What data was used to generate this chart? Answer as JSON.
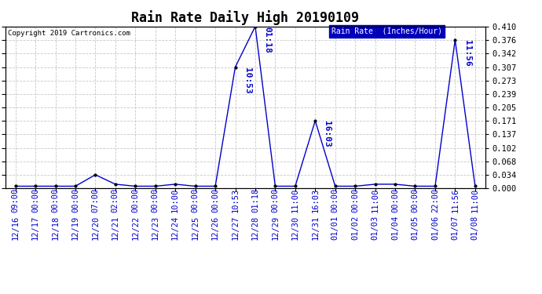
{
  "title": "Rain Rate Daily High 20190109",
  "copyright": "Copyright 2019 Cartronics.com",
  "legend_label": "Rain Rate  (Inches/Hour)",
  "line_color": "#0000cc",
  "background_color": "#ffffff",
  "grid_color": "#c8c8c8",
  "ylim": [
    0.0,
    0.41
  ],
  "ytick_values": [
    0.0,
    0.034,
    0.068,
    0.102,
    0.137,
    0.171,
    0.205,
    0.239,
    0.273,
    0.307,
    0.342,
    0.376,
    0.41
  ],
  "data_y": [
    0.005,
    0.005,
    0.005,
    0.005,
    0.034,
    0.01,
    0.005,
    0.005,
    0.01,
    0.005,
    0.005,
    0.307,
    0.41,
    0.005,
    0.005,
    0.171,
    0.005,
    0.005,
    0.01,
    0.01,
    0.005,
    0.005,
    0.376,
    0.005
  ],
  "x_date_labels": [
    "12/16",
    "12/17",
    "12/18",
    "12/19",
    "12/20",
    "12/21",
    "12/22",
    "12/23",
    "12/24",
    "12/25",
    "12/26",
    "12/27",
    "12/28",
    "12/29",
    "12/30",
    "12/31",
    "01/01",
    "01/02",
    "01/03",
    "01/04",
    "01/05",
    "01/06",
    "01/07",
    "01/08"
  ],
  "x_time_labels": [
    "09:00",
    "00:00",
    "00:00",
    "00:00",
    "07:00",
    "02:00",
    "00:00",
    "00:00",
    "10:00",
    "00:00",
    "00:00",
    "10:53",
    "01:18",
    "00:00",
    "11:00",
    "16:03",
    "00:00",
    "00:00",
    "11:00",
    "00:00",
    "00:00",
    "22:00",
    "11:56",
    "11:00"
  ],
  "peak_indices": [
    11,
    12,
    15,
    22
  ],
  "legend_bg_color": "#0000bb",
  "legend_text_color": "#ffffff",
  "title_fontsize": 12,
  "label_fontsize": 7.5,
  "time_label_fontsize": 7.5,
  "annot_fontsize": 8,
  "marker_color": "#000000",
  "tick_color": "#000000"
}
